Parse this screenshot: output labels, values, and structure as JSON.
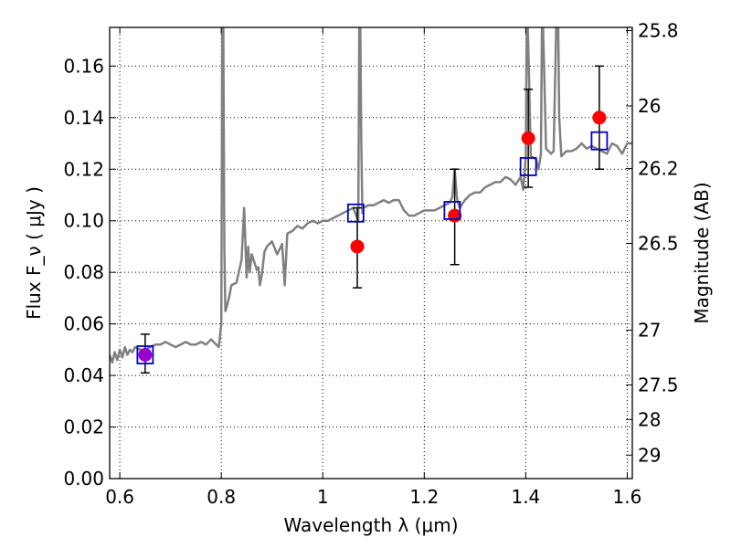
{
  "chart_data": {
    "type": "scatter",
    "xlabel": "Wavelength λ (μm)",
    "ylabel": "Flux F_ν ( μJy )",
    "y2label": "Magnitude (AB)",
    "xlim": [
      0.58,
      1.61
    ],
    "ylim": [
      0.0,
      0.175
    ],
    "grid": true,
    "xticks": [
      0.6,
      0.8,
      1.0,
      1.2,
      1.4,
      1.6
    ],
    "xtick_labels": [
      "0.6",
      "0.8",
      "1",
      "1.2",
      "1.4",
      "1.6"
    ],
    "yticks": [
      0.0,
      0.02,
      0.04,
      0.06,
      0.08,
      0.1,
      0.12,
      0.14,
      0.16
    ],
    "ytick_labels": [
      "0.00",
      "0.02",
      "0.04",
      "0.06",
      "0.08",
      "0.10",
      "0.12",
      "0.14",
      "0.16"
    ],
    "mag_ticks": [
      25.8,
      26,
      26.2,
      26.5,
      27,
      27.5,
      28,
      29
    ],
    "mag_tick_labels": [
      "25.8",
      "26",
      "26.2",
      "26.5",
      "27",
      "27.5",
      "28",
      "29"
    ],
    "colors": {
      "spectrum": "#808080",
      "observed": "#ff0000",
      "model": "#0000cc",
      "errorbar": "#000000",
      "blend": "#9900cc"
    },
    "spectrum": {
      "x": [
        0.58,
        0.585,
        0.59,
        0.595,
        0.6,
        0.605,
        0.61,
        0.615,
        0.62,
        0.625,
        0.63,
        0.64,
        0.65,
        0.66,
        0.67,
        0.68,
        0.69,
        0.7,
        0.71,
        0.72,
        0.73,
        0.74,
        0.75,
        0.76,
        0.77,
        0.78,
        0.79,
        0.795,
        0.8,
        0.802,
        0.804,
        0.806,
        0.808,
        0.81,
        0.815,
        0.82,
        0.83,
        0.84,
        0.845,
        0.85,
        0.853,
        0.856,
        0.86,
        0.87,
        0.873,
        0.876,
        0.88,
        0.885,
        0.89,
        0.9,
        0.91,
        0.92,
        0.925,
        0.93,
        0.94,
        0.95,
        0.96,
        0.97,
        0.98,
        0.99,
        1.0,
        1.01,
        1.02,
        1.03,
        1.04,
        1.05,
        1.06,
        1.07,
        1.072,
        1.074,
        1.076,
        1.078,
        1.08,
        1.09,
        1.1,
        1.11,
        1.12,
        1.13,
        1.14,
        1.15,
        1.16,
        1.17,
        1.18,
        1.19,
        1.2,
        1.21,
        1.22,
        1.23,
        1.24,
        1.25,
        1.255,
        1.26,
        1.265,
        1.27,
        1.28,
        1.29,
        1.3,
        1.31,
        1.32,
        1.33,
        1.34,
        1.35,
        1.36,
        1.37,
        1.38,
        1.39,
        1.395,
        1.4,
        1.402,
        1.404,
        1.406,
        1.41,
        1.42,
        1.425,
        1.43,
        1.432,
        1.434,
        1.436,
        1.44,
        1.45,
        1.455,
        1.46,
        1.462,
        1.464,
        1.466,
        1.47,
        1.48,
        1.49,
        1.5,
        1.51,
        1.52,
        1.53,
        1.54,
        1.55,
        1.56,
        1.57,
        1.58,
        1.59,
        1.6,
        1.61
      ],
      "y": [
        0.048,
        0.045,
        0.049,
        0.046,
        0.05,
        0.047,
        0.051,
        0.048,
        0.05,
        0.049,
        0.051,
        0.05,
        0.05,
        0.051,
        0.052,
        0.052,
        0.053,
        0.052,
        0.051,
        0.052,
        0.053,
        0.052,
        0.052,
        0.053,
        0.052,
        0.054,
        0.052,
        0.051,
        0.06,
        0.175,
        0.175,
        0.09,
        0.065,
        0.066,
        0.07,
        0.075,
        0.076,
        0.085,
        0.105,
        0.078,
        0.09,
        0.08,
        0.087,
        0.081,
        0.082,
        0.075,
        0.079,
        0.088,
        0.09,
        0.092,
        0.087,
        0.091,
        0.075,
        0.095,
        0.096,
        0.098,
        0.097,
        0.099,
        0.1,
        0.099,
        0.1,
        0.1,
        0.101,
        0.102,
        0.103,
        0.104,
        0.105,
        0.1,
        0.175,
        0.175,
        0.13,
        0.103,
        0.105,
        0.106,
        0.106,
        0.107,
        0.108,
        0.107,
        0.108,
        0.108,
        0.104,
        0.102,
        0.102,
        0.103,
        0.104,
        0.104,
        0.104,
        0.105,
        0.106,
        0.107,
        0.109,
        0.12,
        0.108,
        0.105,
        0.108,
        0.11,
        0.111,
        0.111,
        0.113,
        0.114,
        0.115,
        0.115,
        0.117,
        0.116,
        0.114,
        0.117,
        0.112,
        0.125,
        0.175,
        0.175,
        0.16,
        0.125,
        0.124,
        0.12,
        0.126,
        0.175,
        0.175,
        0.16,
        0.128,
        0.126,
        0.127,
        0.175,
        0.175,
        0.175,
        0.14,
        0.125,
        0.127,
        0.127,
        0.128,
        0.13,
        0.128,
        0.129,
        0.128,
        0.127,
        0.126,
        0.13,
        0.129,
        0.126,
        0.13,
        0.13
      ]
    },
    "observed": [
      {
        "x": 0.65,
        "y": 0.048,
        "yerr_low": 0.041,
        "yerr_high": 0.056
      },
      {
        "x": 1.068,
        "y": 0.09,
        "yerr_low": 0.074,
        "yerr_high": 0.105
      },
      {
        "x": 1.26,
        "y": 0.102,
        "yerr_low": 0.083,
        "yerr_high": 0.12
      },
      {
        "x": 1.405,
        "y": 0.132,
        "yerr_low": 0.113,
        "yerr_high": 0.151
      },
      {
        "x": 1.545,
        "y": 0.14,
        "yerr_low": 0.12,
        "yerr_high": 0.16
      }
    ],
    "model": [
      {
        "x": 0.65,
        "y": 0.048
      },
      {
        "x": 1.065,
        "y": 0.103
      },
      {
        "x": 1.255,
        "y": 0.104
      },
      {
        "x": 1.405,
        "y": 0.121
      },
      {
        "x": 1.545,
        "y": 0.131
      }
    ]
  }
}
